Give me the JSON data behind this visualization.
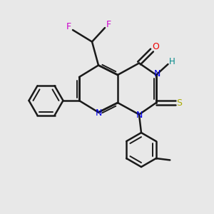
{
  "bg_color": "#e8e8e8",
  "bond_color": "#1a1a1a",
  "N_color": "#0000ee",
  "O_color": "#ee0000",
  "S_color": "#aaaa00",
  "F_color": "#cc00cc",
  "H_color": "#008888",
  "figsize": [
    3.0,
    3.0
  ],
  "dpi": 100,
  "xlim": [
    0,
    10
  ],
  "ylim": [
    0,
    10
  ]
}
